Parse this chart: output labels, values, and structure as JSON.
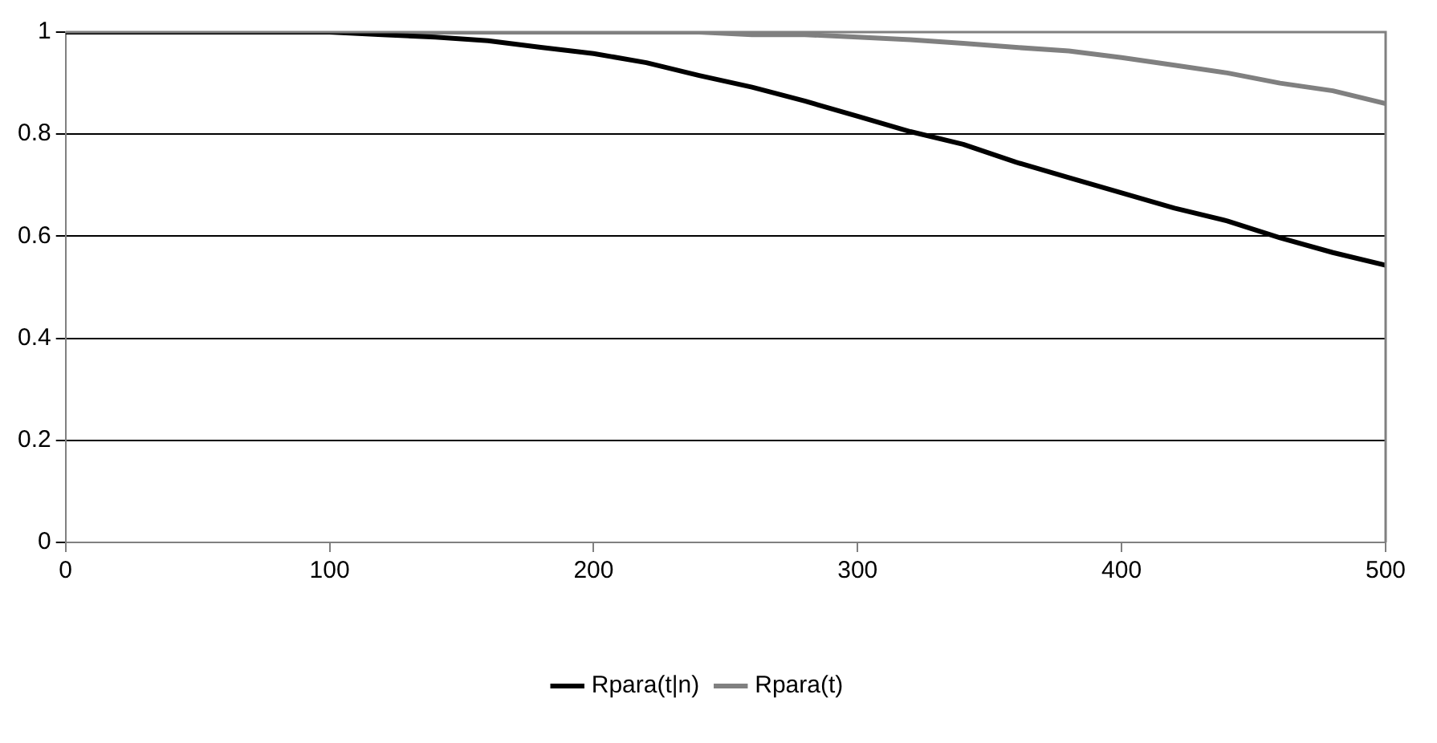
{
  "chart_data": {
    "type": "line",
    "x": [
      0,
      20,
      40,
      60,
      80,
      100,
      120,
      140,
      160,
      180,
      200,
      220,
      240,
      260,
      280,
      300,
      320,
      340,
      360,
      380,
      400,
      420,
      440,
      460,
      480,
      500
    ],
    "series": [
      {
        "name": "Rpara(t|n)",
        "color": "#000000",
        "values": [
          1,
          1,
          1,
          1,
          1,
          1,
          0.995,
          0.99,
          0.983,
          0.97,
          0.958,
          0.94,
          0.915,
          0.892,
          0.865,
          0.835,
          0.805,
          0.78,
          0.745,
          0.715,
          0.685,
          0.655,
          0.63,
          0.597,
          0.568,
          0.543
        ]
      },
      {
        "name": "Rpara(t)",
        "color": "#808080",
        "values": [
          1,
          1,
          1,
          1,
          1,
          1,
          1,
          1,
          1,
          1,
          1,
          1,
          1,
          0.995,
          0.995,
          0.99,
          0.985,
          0.978,
          0.97,
          0.963,
          0.95,
          0.935,
          0.92,
          0.9,
          0.885,
          0.86
        ]
      }
    ],
    "xlim": [
      0,
      500
    ],
    "xticks": [
      0,
      100,
      200,
      300,
      400,
      500
    ],
    "ylim": [
      0,
      1
    ],
    "yticks": [
      0,
      0.2,
      0.4,
      0.6,
      0.8,
      1
    ],
    "grid": "y",
    "legend": "bottom",
    "marker": "none",
    "line_style": "solid"
  }
}
